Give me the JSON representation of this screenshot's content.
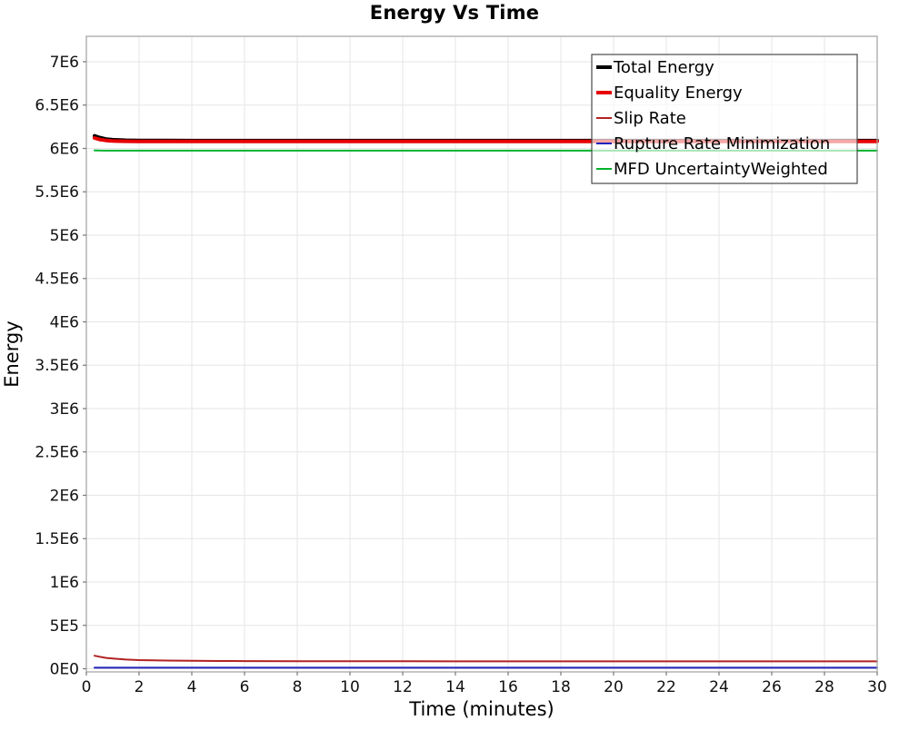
{
  "chart_data": {
    "type": "line",
    "title": "Energy Vs Time",
    "xlabel": "Time (minutes)",
    "ylabel": "Energy",
    "xlim": [
      0,
      30
    ],
    "ylim": [
      -36600,
      7293000
    ],
    "grid": true,
    "legend_position": "top-right",
    "x_ticks": [
      {
        "v": 0,
        "label": "0"
      },
      {
        "v": 2,
        "label": "2"
      },
      {
        "v": 4,
        "label": "4"
      },
      {
        "v": 6,
        "label": "6"
      },
      {
        "v": 8,
        "label": "8"
      },
      {
        "v": 10,
        "label": "10"
      },
      {
        "v": 12,
        "label": "12"
      },
      {
        "v": 14,
        "label": "14"
      },
      {
        "v": 16,
        "label": "16"
      },
      {
        "v": 18,
        "label": "18"
      },
      {
        "v": 20,
        "label": "20"
      },
      {
        "v": 22,
        "label": "22"
      },
      {
        "v": 24,
        "label": "24"
      },
      {
        "v": 26,
        "label": "26"
      },
      {
        "v": 28,
        "label": "28"
      },
      {
        "v": 30,
        "label": "30"
      }
    ],
    "y_ticks": [
      {
        "v": 0,
        "label": "0E0"
      },
      {
        "v": 500000,
        "label": "5E5"
      },
      {
        "v": 1000000,
        "label": "1E6"
      },
      {
        "v": 1500000,
        "label": "1.5E6"
      },
      {
        "v": 2000000,
        "label": "2E6"
      },
      {
        "v": 2500000,
        "label": "2.5E6"
      },
      {
        "v": 3000000,
        "label": "3E6"
      },
      {
        "v": 3500000,
        "label": "3.5E6"
      },
      {
        "v": 4000000,
        "label": "4E6"
      },
      {
        "v": 4500000,
        "label": "4.5E6"
      },
      {
        "v": 5000000,
        "label": "5E6"
      },
      {
        "v": 5500000,
        "label": "5.5E6"
      },
      {
        "v": 6000000,
        "label": "6E6"
      },
      {
        "v": 6500000,
        "label": "6.5E6"
      },
      {
        "v": 7000000,
        "label": "7E6"
      }
    ],
    "x": [
      0.31,
      0.5,
      0.75,
      1,
      1.5,
      2,
      3,
      4,
      5,
      6,
      8,
      10,
      12,
      14,
      16,
      18,
      20,
      22,
      24,
      26,
      28,
      30
    ],
    "series": [
      {
        "name": "Total Energy",
        "color": "#000000",
        "width": 4,
        "values": [
          6145000,
          6125000,
          6108000,
          6100000,
          6094000,
          6092000,
          6091000,
          6090000,
          6090000,
          6090000,
          6090000,
          6090000,
          6090000,
          6090000,
          6090000,
          6090000,
          6090000,
          6090000,
          6090000,
          6090000,
          6090000,
          6090000
        ]
      },
      {
        "name": "Equality Energy",
        "color": "#e60000",
        "width": 4,
        "values": [
          6120000,
          6104000,
          6092000,
          6086000,
          6083000,
          6082000,
          6081000,
          6080000,
          6080000,
          6080000,
          6080000,
          6080000,
          6080000,
          6080000,
          6080000,
          6080000,
          6080000,
          6080000,
          6080000,
          6080000,
          6080000,
          6080000
        ]
      },
      {
        "name": "Slip Rate",
        "color": "#b22222",
        "width": 2,
        "values": [
          150000,
          138000,
          125000,
          117000,
          106000,
          100000,
          94000,
          91000,
          89000,
          88000,
          87000,
          86000,
          86000,
          85000,
          85000,
          85000,
          85000,
          85000,
          85000,
          85000,
          85000,
          85000
        ]
      },
      {
        "name": "Rupture Rate Minimization",
        "color": "#2222bb",
        "width": 2,
        "values": [
          12000,
          12000,
          12000,
          12000,
          12000,
          12000,
          12000,
          12000,
          12000,
          12000,
          12000,
          12000,
          12000,
          12000,
          12000,
          12000,
          12000,
          12000,
          12000,
          12000,
          12000,
          12000
        ]
      },
      {
        "name": "MFD UncertaintyWeighted",
        "color": "#00b22d",
        "width": 2,
        "values": [
          5978000,
          5976000,
          5975000,
          5975000,
          5975000,
          5975000,
          5975000,
          5975000,
          5975000,
          5975000,
          5975000,
          5975000,
          5975000,
          5975000,
          5975000,
          5975000,
          5975000,
          5975000,
          5975000,
          5975000,
          5975000,
          5975000
        ]
      }
    ],
    "colors": {
      "gridline": "#e6e6e6",
      "plot_border": "#a8a8a8",
      "tick": "#777777",
      "tick_text": "#111111",
      "legend_border": "#4a4a4a",
      "legend_bg": "rgba(255,255,255,0.65)",
      "legend_text": "#000000"
    }
  }
}
